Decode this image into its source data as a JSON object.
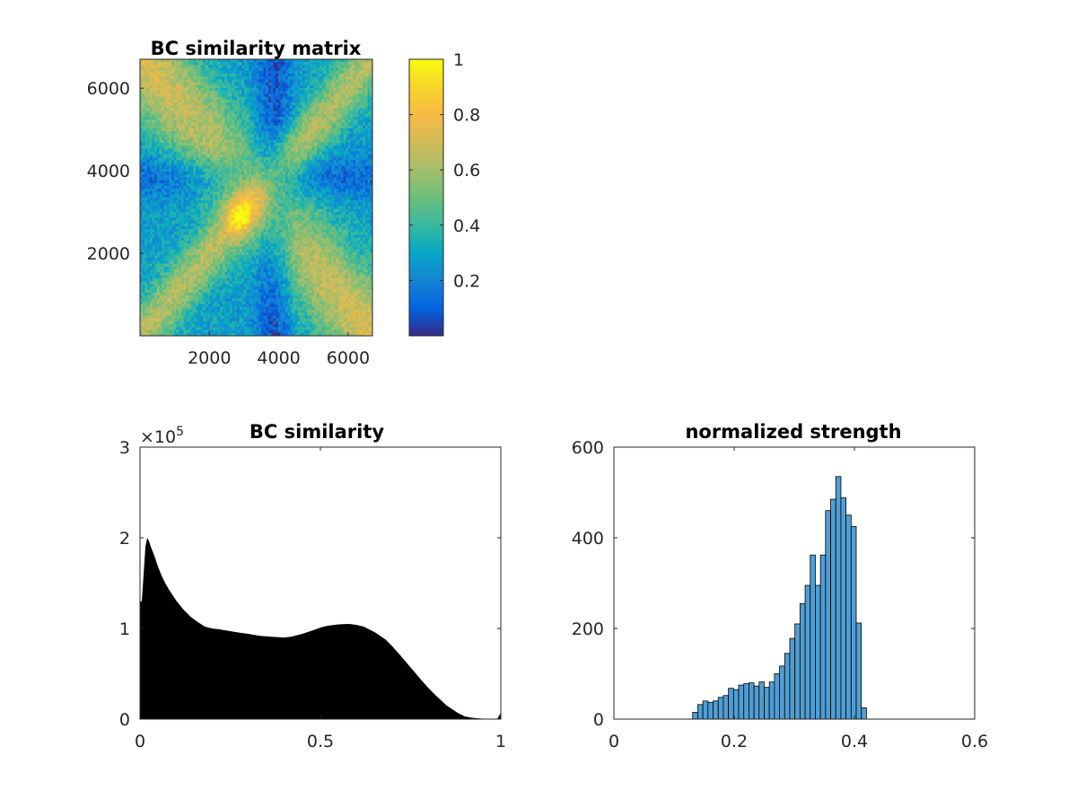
{
  "figure": {
    "background": "#ffffff"
  },
  "chart_data": [
    {
      "type": "heatmap",
      "title": "BC similarity matrix",
      "xlim": [
        1,
        6700
      ],
      "ylim": [
        1,
        6700
      ],
      "xticks": [
        2000,
        4000,
        6000
      ],
      "yticks": [
        2000,
        4000,
        6000
      ],
      "xtick_labels": [
        "2000",
        "4000",
        "6000"
      ],
      "ytick_labels": [
        "2000",
        "4000",
        "6000"
      ],
      "colormap": "parula",
      "colorbar": {
        "range": [
          0,
          1
        ],
        "ticks": [
          0.2,
          0.4,
          0.6,
          0.8,
          1
        ],
        "tick_labels": [
          "0.2",
          "0.4",
          "0.6",
          "0.8",
          "1"
        ]
      }
    },
    {
      "type": "bar",
      "title": "BC similarity",
      "xlim": [
        0,
        1
      ],
      "ylim": [
        0,
        300000
      ],
      "xticks": [
        0,
        0.5,
        1
      ],
      "xtick_labels": [
        "0",
        "0.5",
        "1"
      ],
      "yticks": [
        0,
        1,
        2,
        3
      ],
      "ytick_labels": [
        "0",
        "1",
        "2",
        "3"
      ],
      "y_exponent_label": "×10",
      "y_exponent": "5",
      "bar_color": "#000000",
      "x": [
        0.0,
        0.005,
        0.01,
        0.015,
        0.02,
        0.025,
        0.03,
        0.04,
        0.05,
        0.06,
        0.07,
        0.08,
        0.09,
        0.1,
        0.12,
        0.14,
        0.16,
        0.18,
        0.2,
        0.22,
        0.25,
        0.28,
        0.3,
        0.33,
        0.36,
        0.4,
        0.42,
        0.45,
        0.48,
        0.5,
        0.52,
        0.55,
        0.58,
        0.6,
        0.62,
        0.65,
        0.68,
        0.7,
        0.72,
        0.75,
        0.78,
        0.8,
        0.82,
        0.85,
        0.88,
        0.9,
        0.92,
        0.95,
        0.97,
        0.99,
        1.0
      ],
      "values": [
        130000,
        130000,
        160000,
        190000,
        200000,
        196000,
        190000,
        180000,
        168000,
        158000,
        150000,
        143000,
        137000,
        131000,
        121000,
        113000,
        107000,
        102000,
        100000,
        99000,
        97000,
        95000,
        94000,
        92000,
        91000,
        90000,
        91000,
        94000,
        98000,
        101000,
        103000,
        104500,
        105000,
        104000,
        102000,
        96000,
        88000,
        80000,
        71000,
        57000,
        43000,
        34000,
        26000,
        15000,
        7000,
        3000,
        1500,
        500,
        200,
        100,
        7000
      ]
    },
    {
      "type": "bar",
      "title": "normalized strength",
      "xlim": [
        0,
        0.6
      ],
      "ylim": [
        0,
        600
      ],
      "xticks": [
        0,
        0.2,
        0.4,
        0.6
      ],
      "xtick_labels": [
        "0",
        "0.2",
        "0.4",
        "0.6"
      ],
      "yticks": [
        0,
        200,
        400,
        600
      ],
      "ytick_labels": [
        "0",
        "200",
        "400",
        "600"
      ],
      "bar_color": "#4f9ed4",
      "edge_color": "#000000",
      "bin_width": 0.0085,
      "bin_start": 0.131,
      "values": [
        15,
        32,
        40,
        37,
        40,
        48,
        52,
        68,
        65,
        75,
        78,
        80,
        73,
        82,
        70,
        82,
        100,
        117,
        145,
        178,
        210,
        255,
        295,
        362,
        295,
        362,
        460,
        485,
        535,
        488,
        450,
        425,
        212,
        25
      ]
    }
  ]
}
